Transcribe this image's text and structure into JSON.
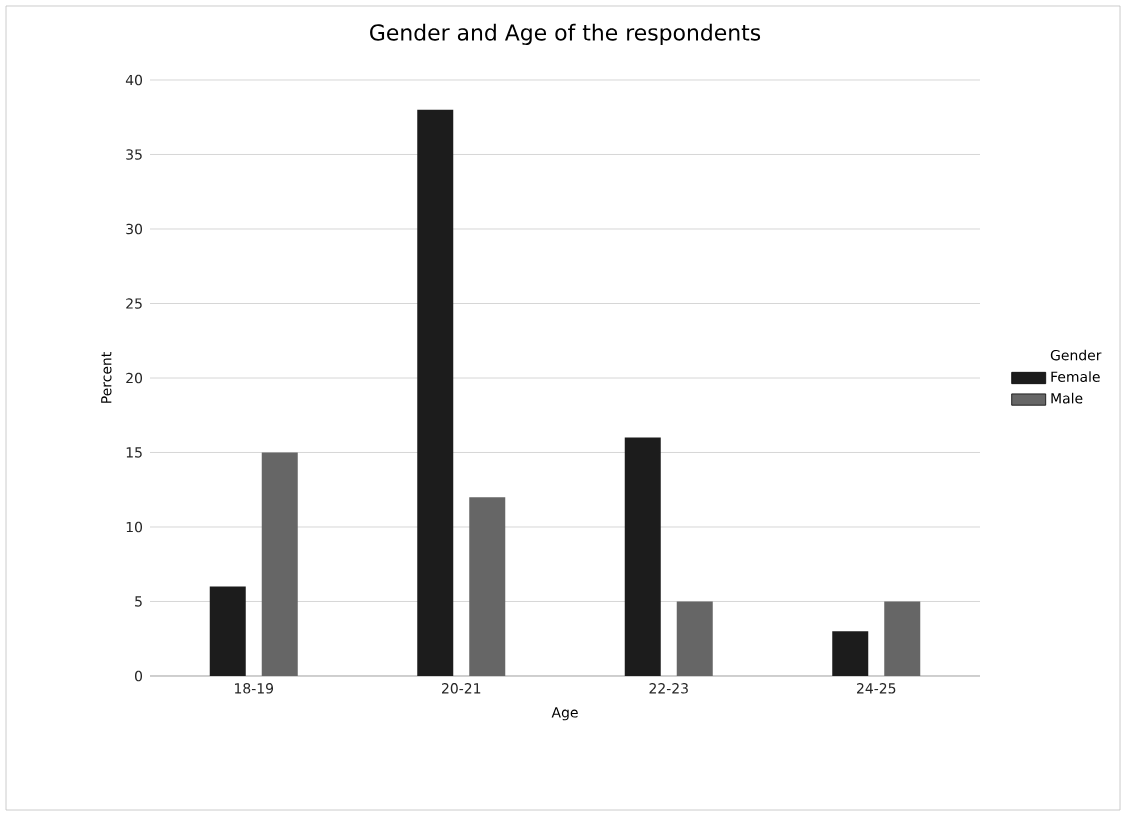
{
  "chart_data": {
    "type": "bar",
    "title": "Gender and Age of the respondents",
    "xlabel": "Age",
    "ylabel": "Percent",
    "legend_title": "Gender",
    "categories": [
      "18-19",
      "20-21",
      "22-23",
      "24-25"
    ],
    "series": [
      {
        "name": "Female",
        "color": "#1c1c1c",
        "values": [
          6,
          38,
          16,
          3
        ]
      },
      {
        "name": "Male",
        "color": "#666666",
        "values": [
          15,
          12,
          5,
          5
        ]
      }
    ],
    "ylim": [
      0,
      40
    ],
    "yticks": [
      0,
      5,
      10,
      15,
      20,
      25,
      30,
      35,
      40
    ],
    "grid": "y",
    "legend": "right"
  }
}
